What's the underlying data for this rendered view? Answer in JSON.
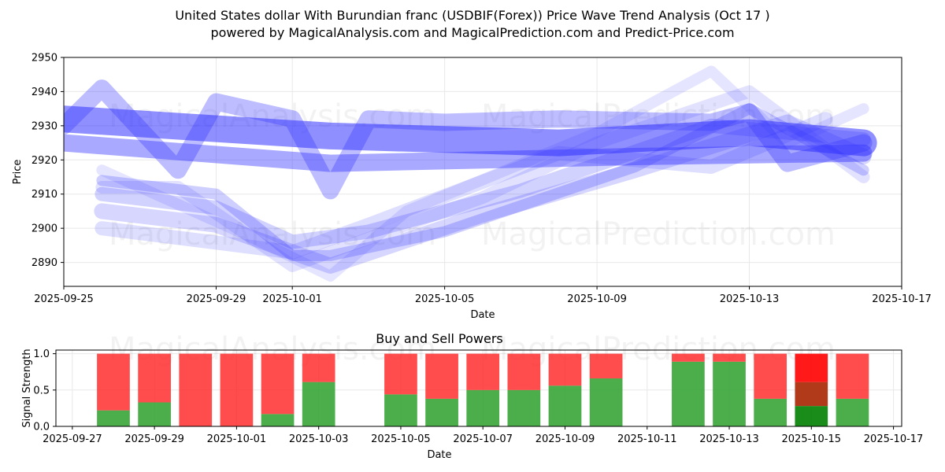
{
  "title_line1": "United States dollar With Burundian franc (USDBIF(Forex)) Price Wave Trend Analysis (Oct 17 )",
  "title_line2": "powered by MagicalAnalysis.com and MagicalPrediction.com and Predict-Price.com",
  "watermarks": [
    "MagicalAnalysis.com",
    "MagicalPrediction.com"
  ],
  "colors": {
    "wave": "#3333ff",
    "buy": "#2ca02c",
    "sell": "#ff2020",
    "sell_strong": "#ff0000",
    "buy_strong": "#008000"
  },
  "chart_data": [
    {
      "type": "line",
      "xlabel": "Date",
      "ylabel": "Price",
      "x_ticks": [
        "2025-09-25",
        "2025-09-29",
        "2025-10-01",
        "2025-10-05",
        "2025-10-09",
        "2025-10-13",
        "2025-10-17"
      ],
      "y_ticks": [
        2890,
        2900,
        2910,
        2920,
        2930,
        2940,
        2950
      ],
      "xlim": [
        "2025-09-25",
        "2025-10-17"
      ],
      "ylim": [
        2883,
        2950
      ],
      "grid": true,
      "series": [
        {
          "x": [
            "2025-09-25",
            "2025-09-26",
            "2025-09-28",
            "2025-09-29",
            "2025-10-01",
            "2025-10-02",
            "2025-10-03",
            "2025-10-05",
            "2025-10-08",
            "2025-10-12",
            "2025-10-13",
            "2025-10-14",
            "2025-10-16"
          ],
          "y": [
            2930,
            2941,
            2917,
            2937,
            2932,
            2911,
            2932,
            2931,
            2932,
            2931,
            2934,
            2919,
            2925
          ]
        },
        {
          "x": [
            "2025-09-25",
            "2025-10-02",
            "2025-10-08",
            "2025-10-13",
            "2025-10-16"
          ],
          "y": [
            2932,
            2927,
            2925,
            2928,
            2925
          ]
        },
        {
          "x": [
            "2025-09-25",
            "2025-10-02",
            "2025-10-10",
            "2025-10-16"
          ],
          "y": [
            2925,
            2919,
            2921,
            2922
          ]
        },
        {
          "x": [
            "2025-09-26",
            "2025-09-29",
            "2025-10-01",
            "2025-10-02",
            "2025-10-05",
            "2025-10-10",
            "2025-10-13",
            "2025-10-16"
          ],
          "y": [
            2914,
            2910,
            2892,
            2892,
            2899,
            2918,
            2935,
            2917
          ]
        },
        {
          "x": [
            "2025-09-26",
            "2025-09-29",
            "2025-10-01",
            "2025-10-03",
            "2025-10-07",
            "2025-10-12",
            "2025-10-16"
          ],
          "y": [
            2910,
            2906,
            2896,
            2899,
            2911,
            2930,
            2926
          ]
        },
        {
          "x": [
            "2025-09-26",
            "2025-09-29",
            "2025-10-02",
            "2025-10-06",
            "2025-10-10",
            "2025-10-14",
            "2025-10-16"
          ],
          "y": [
            2905,
            2901,
            2889,
            2904,
            2917,
            2931,
            2921
          ]
        },
        {
          "x": [
            "2025-09-26",
            "2025-09-30",
            "2025-10-02",
            "2025-10-04",
            "2025-10-09",
            "2025-10-12",
            "2025-10-14",
            "2025-10-16"
          ],
          "y": [
            2917,
            2897,
            2886,
            2905,
            2928,
            2946,
            2925,
            2935
          ]
        },
        {
          "x": [
            "2025-09-26",
            "2025-10-01",
            "2025-10-03",
            "2025-10-08",
            "2025-10-12",
            "2025-10-15"
          ],
          "y": [
            2900,
            2893,
            2901,
            2922,
            2918,
            2932
          ]
        },
        {
          "x": [
            "2025-09-26",
            "2025-09-28",
            "2025-10-01",
            "2025-10-06",
            "2025-10-09",
            "2025-10-13",
            "2025-10-16"
          ],
          "y": [
            2912,
            2912,
            2889,
            2909,
            2925,
            2940,
            2915
          ]
        }
      ]
    },
    {
      "type": "bar",
      "title": "Buy and Sell Powers",
      "xlabel": "Date",
      "ylabel": "Signal Strength",
      "x_ticks": [
        "2025-09-27",
        "2025-09-29",
        "2025-10-01",
        "2025-10-03",
        "2025-10-05",
        "2025-10-07",
        "2025-10-09",
        "2025-10-11",
        "2025-10-13",
        "2025-10-15",
        "2025-10-17"
      ],
      "y_ticks": [
        0.0,
        0.5,
        1.0
      ],
      "ylim": [
        0,
        1.05
      ],
      "grid": true,
      "categories": [
        "2025-09-28",
        "2025-09-29",
        "2025-09-30",
        "2025-10-01",
        "2025-10-02",
        "2025-10-03",
        "2025-10-05",
        "2025-10-06",
        "2025-10-07",
        "2025-10-08",
        "2025-10-09",
        "2025-10-10",
        "2025-10-12",
        "2025-10-13",
        "2025-10-14",
        "2025-10-15",
        "2025-10-16"
      ],
      "series": [
        {
          "name": "Buy",
          "values": [
            0.22,
            0.33,
            0.0,
            0.0,
            0.17,
            0.61,
            0.44,
            0.38,
            0.5,
            0.5,
            0.56,
            0.66,
            0.89,
            0.89,
            0.38,
            0.28,
            0.38
          ]
        },
        {
          "name": "Sell",
          "values": [
            0.78,
            0.67,
            1.0,
            1.0,
            0.83,
            0.39,
            0.56,
            0.62,
            0.5,
            0.5,
            0.44,
            0.34,
            0.11,
            0.11,
            0.62,
            0.72,
            0.62
          ]
        }
      ],
      "highlight": {
        "category": "2025-10-15",
        "buy": 0.28,
        "mid": 0.61
      }
    }
  ]
}
